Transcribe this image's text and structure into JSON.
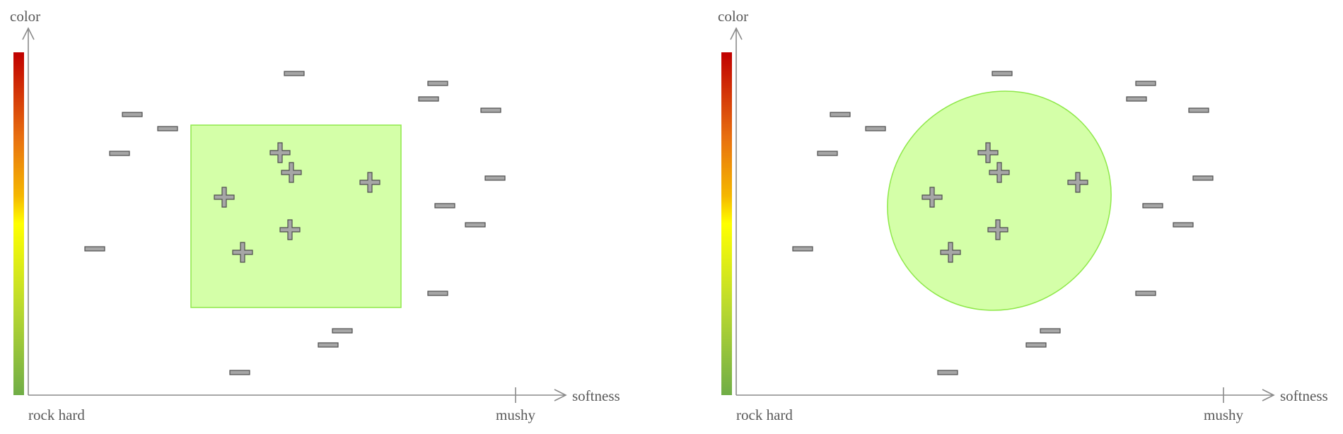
{
  "panels": [
    {
      "id": "left",
      "y_axis_label": "color",
      "x_axis_label": "softness",
      "x_min_label": "rock hard",
      "x_max_label": "mushy",
      "region_shape": "rectangle"
    },
    {
      "id": "right",
      "y_axis_label": "color",
      "x_axis_label": "softness",
      "x_min_label": "rock hard",
      "x_max_label": "mushy",
      "region_shape": "ellipse"
    }
  ],
  "colors": {
    "region_fill": "#d4ffa8",
    "region_stroke": "#8fe84a",
    "marker_fill": "#a6a6a6",
    "marker_stroke": "#4d4d4d",
    "axis": "#8a8a8a",
    "colorbar_stops": [
      "#c00000",
      "#e87010",
      "#f5b800",
      "#ffff00",
      "#b8d830",
      "#70ad47"
    ]
  }
}
